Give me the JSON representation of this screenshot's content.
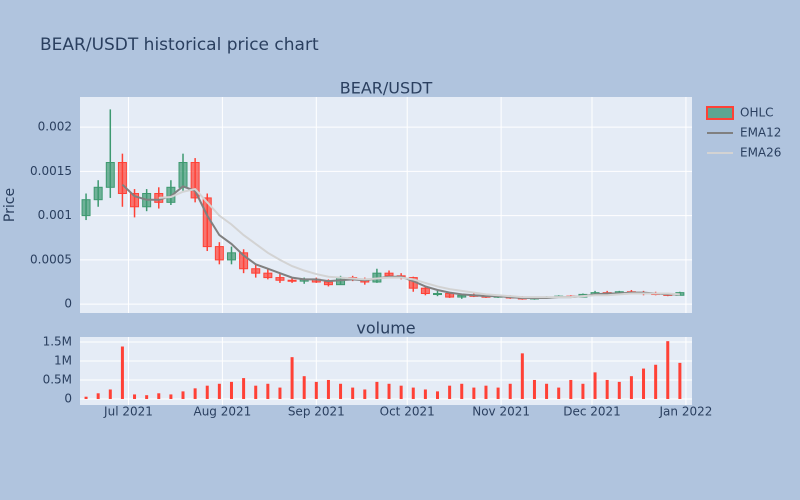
{
  "title": "BEAR/USDT historical price chart",
  "chart_data": [
    {
      "type": "candlestick",
      "title": "BEAR/USDT",
      "name": "OHLC",
      "ylabel": "Price",
      "increasing_color": "#3d9970",
      "decreasing_color": "#ff4136",
      "x": [
        -14,
        -10,
        -6,
        -2,
        2,
        6,
        10,
        14,
        18,
        22,
        26,
        30,
        34,
        38,
        42,
        46,
        50,
        54,
        58,
        62,
        66,
        70,
        74,
        78,
        82,
        86,
        90,
        94,
        98,
        102,
        106,
        110,
        114,
        118,
        122,
        126,
        130,
        134,
        138,
        142,
        146,
        150,
        154,
        158,
        162,
        166,
        170,
        174,
        178,
        182
      ],
      "open": [
        0.001,
        0.00118,
        0.00132,
        0.0016,
        0.00125,
        0.0011,
        0.00125,
        0.00115,
        0.00132,
        0.0016,
        0.0012,
        0.00065,
        0.0005,
        0.00058,
        0.0004,
        0.00035,
        0.0003,
        0.00027,
        0.00026,
        0.00028,
        0.00025,
        0.00022,
        0.0003,
        0.00028,
        0.00025,
        0.00035,
        0.00032,
        0.0003,
        0.00018,
        0.00012,
        0.00012,
        8e-05,
        0.0001,
        9e-05,
        8e-05,
        9e-05,
        7e-05,
        6e-05,
        7e-05,
        8e-05,
        9e-05,
        8e-05,
        0.00011,
        0.00013,
        0.00012,
        0.00014,
        0.00013,
        0.00012,
        0.00011,
        0.0001
      ],
      "high": [
        0.00125,
        0.0014,
        0.0022,
        0.0017,
        0.0013,
        0.0013,
        0.00132,
        0.0014,
        0.0017,
        0.00165,
        0.00125,
        0.0007,
        0.00065,
        0.00062,
        0.00045,
        0.0004,
        0.00035,
        0.0003,
        0.0003,
        0.0003,
        0.00028,
        0.00032,
        0.00032,
        0.0003,
        0.0004,
        0.00038,
        0.00035,
        0.00031,
        0.0002,
        0.00015,
        0.00013,
        0.00012,
        0.00012,
        0.00011,
        0.0001,
        0.0001,
        9e-05,
        8e-05,
        9e-05,
        0.0001,
        0.0001,
        0.00012,
        0.00015,
        0.00015,
        0.00015,
        0.00016,
        0.00015,
        0.00014,
        0.00013,
        0.00014
      ],
      "low": [
        0.00095,
        0.0011,
        0.0012,
        0.0011,
        0.00098,
        0.00105,
        0.00108,
        0.00112,
        0.00128,
        0.00115,
        0.0006,
        0.00045,
        0.00045,
        0.00035,
        0.0003,
        0.00028,
        0.00024,
        0.00024,
        0.00023,
        0.00024,
        0.0002,
        0.00022,
        0.00026,
        0.00022,
        0.00024,
        0.0003,
        0.00028,
        0.00014,
        0.0001,
        9e-05,
        7e-05,
        6e-05,
        8e-05,
        7e-05,
        7e-05,
        6e-05,
        5e-05,
        5e-05,
        6e-05,
        7e-05,
        7e-05,
        8e-05,
        0.0001,
        0.00011,
        0.00011,
        0.00012,
        0.0001,
        0.0001,
        9e-05,
        0.0001
      ],
      "close": [
        0.00118,
        0.00132,
        0.0016,
        0.00125,
        0.0011,
        0.00125,
        0.00115,
        0.00132,
        0.0016,
        0.0012,
        0.00065,
        0.0005,
        0.00058,
        0.0004,
        0.00035,
        0.0003,
        0.00027,
        0.00026,
        0.00028,
        0.00025,
        0.00022,
        0.0003,
        0.00028,
        0.00025,
        0.00035,
        0.00032,
        0.0003,
        0.00018,
        0.00012,
        0.00012,
        8e-05,
        0.0001,
        9e-05,
        8e-05,
        9e-05,
        7e-05,
        6e-05,
        7e-05,
        8e-05,
        9e-05,
        8e-05,
        0.00011,
        0.00013,
        0.00012,
        0.00014,
        0.00013,
        0.00012,
        0.00011,
        0.0001,
        0.00013
      ],
      "series": [
        {
          "name": "EMA12",
          "color": "#808080",
          "values": [
            null,
            null,
            null,
            0.00135,
            0.00122,
            0.00118,
            0.00118,
            0.00122,
            0.00133,
            0.00128,
            0.001,
            0.00078,
            0.00068,
            0.00055,
            0.00045,
            0.0004,
            0.00035,
            0.0003,
            0.00028,
            0.00028,
            0.00026,
            0.00027,
            0.00028,
            0.00027,
            0.00029,
            0.00031,
            0.00031,
            0.00026,
            0.0002,
            0.00016,
            0.00013,
            0.00011,
            0.0001,
            9e-05,
            9e-05,
            8e-05,
            7e-05,
            7e-05,
            7e-05,
            8e-05,
            8e-05,
            9e-05,
            0.00011,
            0.00012,
            0.00012,
            0.00013,
            0.00013,
            0.00012,
            0.00011,
            0.00011
          ]
        },
        {
          "name": "EMA26",
          "color": "#d3d3d3",
          "values": [
            null,
            null,
            null,
            null,
            null,
            null,
            0.0012,
            0.00121,
            0.00127,
            0.0013,
            0.00115,
            0.001,
            0.0009,
            0.00078,
            0.00068,
            0.00058,
            0.0005,
            0.00043,
            0.00038,
            0.00034,
            0.00031,
            0.0003,
            0.00029,
            0.00028,
            0.00029,
            0.0003,
            0.0003,
            0.00028,
            0.00024,
            0.0002,
            0.00017,
            0.00015,
            0.00013,
            0.00011,
            0.0001,
            9e-05,
            8e-05,
            8e-05,
            8e-05,
            8e-05,
            8e-05,
            9e-05,
            0.0001,
            0.0001,
            0.00011,
            0.00012,
            0.00012,
            0.00012,
            0.00012,
            0.00011
          ]
        }
      ],
      "xlim": [
        -16,
        186
      ],
      "ylim": [
        -0.0001,
        0.00234
      ],
      "yticks": [
        0,
        0.0005,
        0.001,
        0.0015,
        0.002
      ],
      "grid": true
    },
    {
      "type": "bar",
      "title": "volume",
      "color": "#ff4136",
      "values": [
        60000,
        150000,
        250000,
        1380000,
        120000,
        100000,
        150000,
        120000,
        200000,
        280000,
        350000,
        400000,
        450000,
        550000,
        350000,
        400000,
        300000,
        1100000,
        600000,
        450000,
        500000,
        400000,
        300000,
        250000,
        450000,
        400000,
        350000,
        300000,
        250000,
        200000,
        350000,
        400000,
        300000,
        350000,
        300000,
        400000,
        1200000,
        500000,
        400000,
        300000,
        500000,
        400000,
        700000,
        500000,
        450000,
        600000,
        800000,
        900000,
        1520000,
        950000
      ],
      "ylim": [
        -158000,
        1630000
      ],
      "yticks": [
        0,
        {
          "value": 500000,
          "label": "0.5M"
        },
        {
          "value": 1000000,
          "label": "1M"
        },
        {
          "value": 1500000,
          "label": "1.5M"
        }
      ],
      "xticks": [
        {
          "value": 0,
          "label": "Jul 2021"
        },
        {
          "value": 31,
          "label": "Aug 2021"
        },
        {
          "value": 62,
          "label": "Sep 2021"
        },
        {
          "value": 92,
          "label": "Oct 2021"
        },
        {
          "value": 123,
          "label": "Nov 2021"
        },
        {
          "value": 153,
          "label": "Dec 2021"
        },
        {
          "value": 184,
          "label": "Jan 2022"
        }
      ],
      "grid": true
    }
  ]
}
